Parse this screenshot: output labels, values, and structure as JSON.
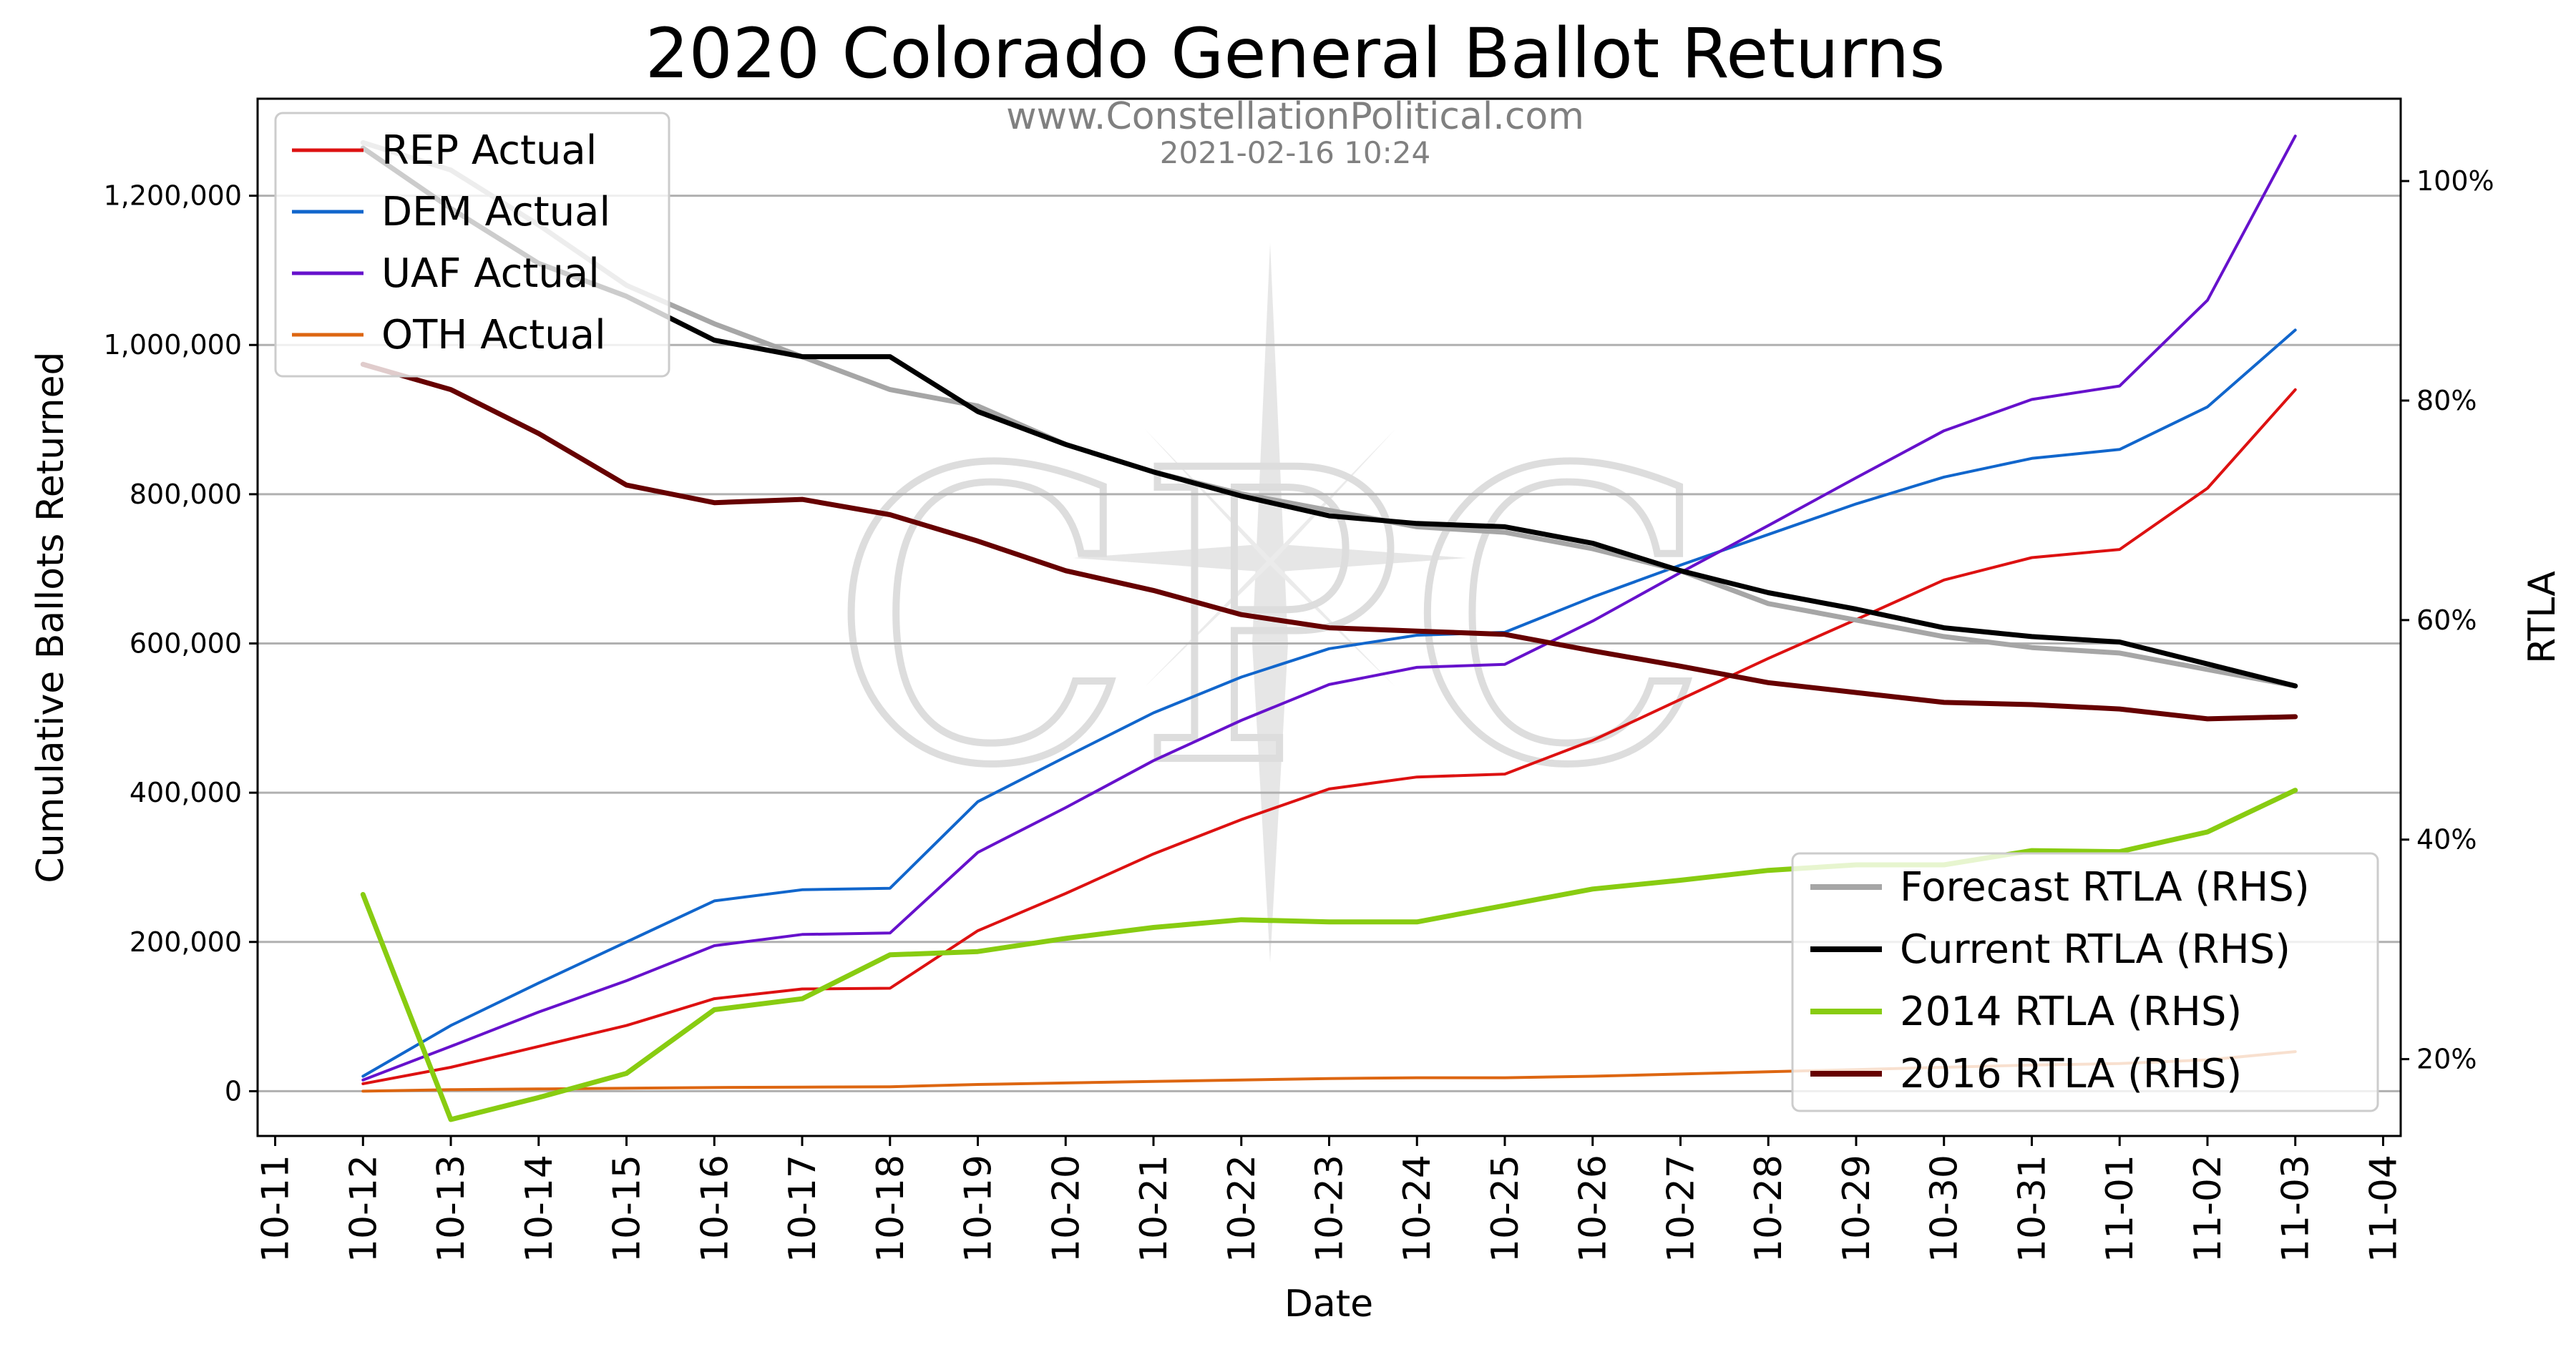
{
  "watermark": {
    "site": "www.ConstellationPolitical.com",
    "timestamp": "2021-02-16 10:24",
    "logo_letters": "CPC"
  },
  "chart_data": {
    "type": "line",
    "title": "2020 Colorado General Ballot Returns",
    "xlabel": "Date",
    "ylabel": "Cumulative Ballots Returned",
    "ylabel_right": "RTLA",
    "x_ticks": [
      "10-11",
      "10-12",
      "10-13",
      "10-14",
      "10-15",
      "10-16",
      "10-17",
      "10-18",
      "10-19",
      "10-20",
      "10-21",
      "10-22",
      "10-23",
      "10-24",
      "10-25",
      "10-26",
      "10-27",
      "10-28",
      "10-29",
      "10-30",
      "10-31",
      "11-01",
      "11-02",
      "11-03",
      "11-04"
    ],
    "x": [
      "10-12",
      "10-13",
      "10-14",
      "10-15",
      "10-16",
      "10-17",
      "10-18",
      "10-19",
      "10-20",
      "10-21",
      "10-22",
      "10-23",
      "10-24",
      "10-25",
      "10-26",
      "10-27",
      "10-28",
      "10-29",
      "10-30",
      "10-31",
      "11-01",
      "11-02",
      "11-03"
    ],
    "ylim": [
      -60000,
      1330000
    ],
    "y_ticks": [
      0,
      200000,
      400000,
      600000,
      800000,
      1000000,
      1200000
    ],
    "y_tick_labels": [
      "0",
      "200,000",
      "400,000",
      "600,000",
      "800,000",
      "1,000,000",
      "1,200,000"
    ],
    "y2lim": [
      0.13,
      1.075
    ],
    "y2_ticks": [
      0.2,
      0.4,
      0.6,
      0.8,
      1.0
    ],
    "y2_tick_labels": [
      "20%",
      "40%",
      "60%",
      "80%",
      "100%"
    ],
    "grid": "horizontal",
    "legend_left": {
      "position": "top-left",
      "entries": [
        "REP Actual",
        "DEM Actual",
        "UAF Actual",
        "OTH Actual"
      ]
    },
    "legend_right": {
      "position": "bottom-right",
      "entries": [
        "Forecast RTLA (RHS)",
        "Current RTLA (RHS)",
        "2014 RTLA (RHS)",
        "2016 RTLA (RHS)"
      ]
    },
    "series": [
      {
        "name": "REP Actual",
        "axis": "left",
        "color": "#dd1111",
        "width": 4,
        "values": [
          10000,
          32000,
          60000,
          88000,
          124000,
          137000,
          138000,
          215000,
          265000,
          318000,
          364000,
          405000,
          421000,
          425000,
          470000,
          525000,
          580000,
          632000,
          685000,
          715000,
          726000,
          808000,
          940000
        ]
      },
      {
        "name": "DEM Actual",
        "axis": "left",
        "color": "#1166cc",
        "width": 4,
        "values": [
          20000,
          88000,
          145000,
          200000,
          255000,
          270000,
          272000,
          388000,
          448000,
          507000,
          555000,
          593000,
          611000,
          615000,
          662000,
          705000,
          746000,
          787000,
          823000,
          848000,
          860000,
          917000,
          1020000
        ]
      },
      {
        "name": "UAF Actual",
        "axis": "left",
        "color": "#6611cc",
        "width": 4,
        "values": [
          15000,
          60000,
          106000,
          148000,
          195000,
          210000,
          212000,
          320000,
          380000,
          443000,
          497000,
          545000,
          568000,
          572000,
          630000,
          695000,
          758000,
          822000,
          885000,
          927000,
          945000,
          1060000,
          1280000
        ]
      },
      {
        "name": "OTH Actual",
        "axis": "left",
        "color": "#dd6611",
        "width": 4,
        "values": [
          0,
          2000,
          3000,
          4000,
          5000,
          5500,
          6000,
          9000,
          11000,
          13000,
          15000,
          17000,
          18000,
          18000,
          20000,
          23000,
          26000,
          29000,
          32000,
          35000,
          37000,
          42000,
          53000
        ]
      },
      {
        "name": "Forecast RTLA (RHS)",
        "axis": "right",
        "color": "#a6a6a6",
        "width": 7,
        "values": [
          1.035,
          1.01,
          0.96,
          0.905,
          0.87,
          0.84,
          0.81,
          0.795,
          0.76,
          0.735,
          0.715,
          0.7,
          0.685,
          0.68,
          0.665,
          0.645,
          0.615,
          0.6,
          0.585,
          0.575,
          0.57,
          0.555,
          0.54
        ]
      },
      {
        "name": "Current RTLA (RHS)",
        "axis": "right",
        "color": "#000000",
        "width": 7,
        "values": [
          1.03,
          0.975,
          0.925,
          0.895,
          0.855,
          0.84,
          0.84,
          0.79,
          0.76,
          0.735,
          0.713,
          0.695,
          0.688,
          0.685,
          0.67,
          0.645,
          0.625,
          0.61,
          0.593,
          0.585,
          0.58,
          0.56,
          0.54
        ]
      },
      {
        "name": "2014 RTLA (RHS)",
        "axis": "right",
        "color": "#88cc11",
        "width": 7,
        "values": [
          0.35,
          0.145,
          0.165,
          0.187,
          0.245,
          0.255,
          0.295,
          0.298,
          0.31,
          0.32,
          0.327,
          0.325,
          0.325,
          0.34,
          0.355,
          0.363,
          0.372,
          0.377,
          0.377,
          0.39,
          0.389,
          0.407,
          0.445
        ]
      },
      {
        "name": "2016 RTLA (RHS)",
        "axis": "right",
        "color": "#660000",
        "width": 7,
        "values": [
          0.833,
          0.81,
          0.77,
          0.723,
          0.707,
          0.71,
          0.696,
          0.672,
          0.645,
          0.627,
          0.605,
          0.593,
          0.59,
          0.587,
          0.572,
          0.558,
          0.543,
          0.534,
          0.525,
          0.523,
          0.519,
          0.51,
          0.512
        ]
      }
    ]
  }
}
